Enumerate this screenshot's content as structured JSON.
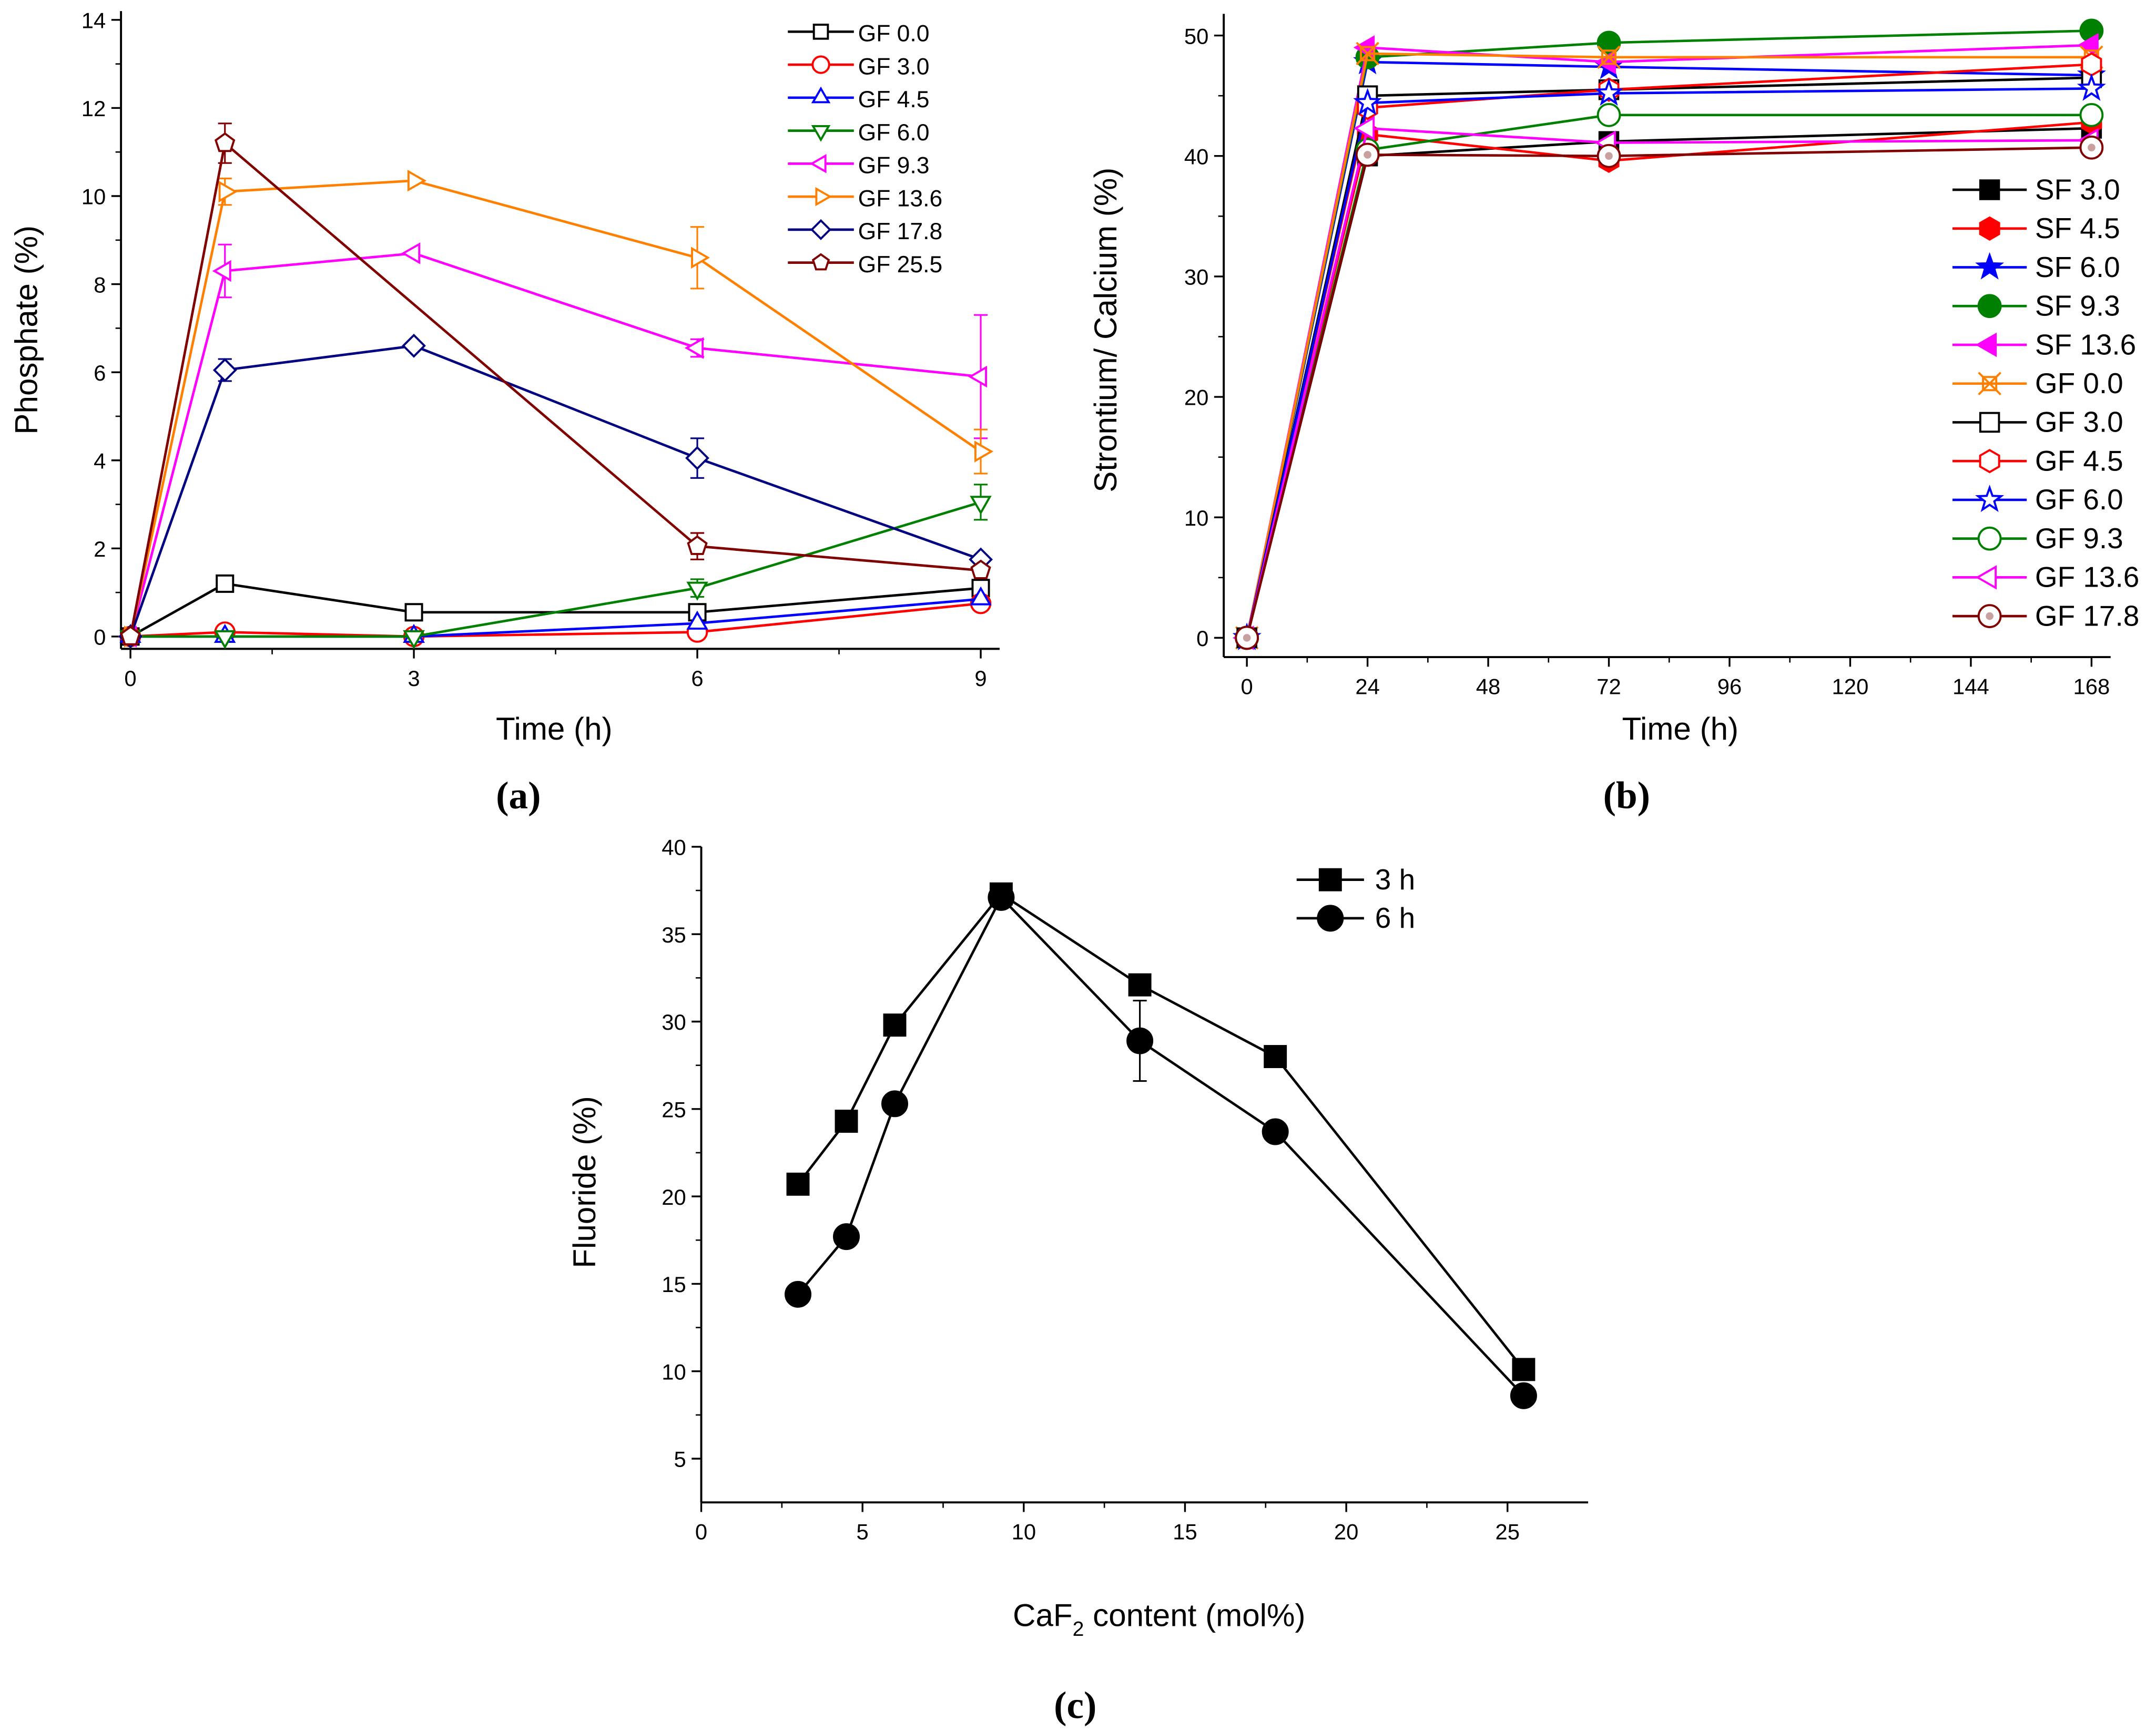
{
  "chart_data": [
    {
      "id": "a",
      "type": "line",
      "panel_label": "(a)",
      "xlabel": "Time (h)",
      "ylabel": "Phosphate (%)",
      "xlim": [
        -0.1,
        9.2
      ],
      "ylim": [
        -0.28,
        14.2
      ],
      "xticks": [
        0,
        3,
        6,
        9
      ],
      "yticks": [
        0,
        2,
        4,
        6,
        8,
        10,
        12,
        14
      ],
      "legend_position": "top-right",
      "series": [
        {
          "name": "GF 0.0",
          "color": "#000000",
          "marker": "square",
          "filled": false,
          "x": [
            0,
            1,
            3,
            6,
            9
          ],
          "y": [
            0,
            1.2,
            0.55,
            0.55,
            1.1
          ]
        },
        {
          "name": "GF 3.0",
          "color": "#ff0000",
          "marker": "circle",
          "filled": false,
          "x": [
            0,
            1,
            3,
            6,
            9
          ],
          "y": [
            0,
            0.1,
            0,
            0.1,
            0.75
          ]
        },
        {
          "name": "GF 4.5",
          "color": "#0000ff",
          "marker": "tri-up",
          "filled": false,
          "x": [
            0,
            1,
            3,
            6,
            9
          ],
          "y": [
            0,
            0,
            0,
            0.3,
            0.85
          ]
        },
        {
          "name": "GF 6.0",
          "color": "#008000",
          "marker": "tri-down",
          "filled": false,
          "x": [
            0,
            1,
            3,
            6,
            9
          ],
          "y": [
            0,
            0,
            0,
            1.1,
            3.05
          ],
          "err": [
            0,
            0,
            0,
            0.2,
            0.4
          ]
        },
        {
          "name": "GF 9.3",
          "color": "#ff00ff",
          "marker": "tri-left",
          "filled": false,
          "x": [
            0,
            1,
            3,
            6,
            9
          ],
          "y": [
            0,
            8.3,
            8.7,
            6.55,
            5.9
          ],
          "err": [
            0,
            0.6,
            0,
            0.2,
            1.4
          ]
        },
        {
          "name": "GF 13.6",
          "color": "#ff8000",
          "marker": "tri-right",
          "filled": false,
          "x": [
            0,
            1,
            3,
            6,
            9
          ],
          "y": [
            0,
            10.1,
            10.35,
            8.6,
            4.2
          ],
          "err": [
            0,
            0.3,
            0,
            0.7,
            0.5
          ]
        },
        {
          "name": "GF 17.8",
          "color": "#000080",
          "marker": "diamond",
          "filled": false,
          "x": [
            0,
            1,
            3,
            6,
            9
          ],
          "y": [
            0,
            6.05,
            6.6,
            4.05,
            1.75
          ],
          "err": [
            0,
            0.25,
            0,
            0.45,
            0
          ]
        },
        {
          "name": "GF 25.5",
          "color": "#800000",
          "marker": "pentagon",
          "filled": false,
          "x": [
            0,
            1,
            6,
            9
          ],
          "y": [
            0,
            11.2,
            2.05,
            1.5
          ],
          "err": [
            0,
            0.45,
            0.3,
            0
          ]
        }
      ]
    },
    {
      "id": "b",
      "type": "line",
      "panel_label": "(b)",
      "xlabel": "Time (h)",
      "ylabel": "Strontium/ Calcium (%)",
      "xlim": [
        -4.6,
        171.8
      ],
      "ylim": [
        -1.6,
        51.8
      ],
      "xticks": [
        0,
        24,
        48,
        72,
        96,
        120,
        144,
        168
      ],
      "yticks": [
        0,
        10,
        20,
        30,
        40,
        50
      ],
      "legend_position": "right",
      "series": [
        {
          "name": "SF 3.0",
          "color": "#000000",
          "marker": "square",
          "filled": true,
          "x": [
            0,
            24,
            72,
            168
          ],
          "y": [
            0,
            40,
            41.2,
            42.3
          ]
        },
        {
          "name": "SF 4.5",
          "color": "#ff0000",
          "marker": "hexagon",
          "filled": true,
          "x": [
            0,
            24,
            72,
            168
          ],
          "y": [
            0,
            41.8,
            39.6,
            42.8
          ]
        },
        {
          "name": "SF 6.0",
          "color": "#0000ff",
          "marker": "star",
          "filled": true,
          "x": [
            0,
            24,
            72,
            168
          ],
          "y": [
            0,
            47.8,
            47.4,
            46.7
          ]
        },
        {
          "name": "SF 9.3",
          "color": "#008000",
          "marker": "circle",
          "filled": true,
          "x": [
            0,
            24,
            72,
            168
          ],
          "y": [
            0,
            48.2,
            49.4,
            50.4
          ]
        },
        {
          "name": "SF 13.6",
          "color": "#ff00ff",
          "marker": "tri-left",
          "filled": true,
          "x": [
            0,
            24,
            72,
            168
          ],
          "y": [
            0,
            49,
            47.8,
            49.2
          ]
        },
        {
          "name": "GF 0.0",
          "color": "#ff8000",
          "marker": "xbox",
          "filled": false,
          "x": [
            0,
            24,
            72,
            168
          ],
          "y": [
            0,
            48.5,
            48.2,
            48.2
          ]
        },
        {
          "name": "GF 3.0",
          "color": "#000000",
          "marker": "square",
          "filled": false,
          "x": [
            0,
            24,
            72,
            168
          ],
          "y": [
            0,
            45,
            45.5,
            46.5
          ]
        },
        {
          "name": "GF 4.5",
          "color": "#ff0000",
          "marker": "hexagon",
          "filled": false,
          "x": [
            0,
            24,
            72,
            168
          ],
          "y": [
            0,
            44,
            45.5,
            47.6
          ]
        },
        {
          "name": "GF 6.0",
          "color": "#0000ff",
          "marker": "star",
          "filled": false,
          "x": [
            0,
            24,
            72,
            168
          ],
          "y": [
            0,
            44.4,
            45.2,
            45.6
          ]
        },
        {
          "name": "GF 9.3",
          "color": "#008000",
          "marker": "circle",
          "filled": false,
          "x": [
            0,
            24,
            72,
            168
          ],
          "y": [
            0,
            40.5,
            43.4,
            43.4
          ]
        },
        {
          "name": "GF 13.6",
          "color": "#ff00ff",
          "marker": "tri-left",
          "filled": false,
          "x": [
            0,
            24,
            72,
            168
          ],
          "y": [
            0,
            42.3,
            41.1,
            41.3
          ]
        },
        {
          "name": "GF 17.8",
          "color": "#800000",
          "marker": "circle-dot",
          "filled": false,
          "x": [
            0,
            24,
            72,
            168
          ],
          "y": [
            0,
            40.1,
            40,
            40.7
          ]
        }
      ]
    },
    {
      "id": "c",
      "type": "line",
      "panel_label": "(c)",
      "xlabel_main": "CaF",
      "xlabel_sub": "2",
      "xlabel_rest": " content (mol%)",
      "ylabel": "Fluoride (%)",
      "xlim": [
        0,
        27.5
      ],
      "ylim": [
        2.5,
        40
      ],
      "xticks": [
        0,
        5,
        10,
        15,
        20,
        25
      ],
      "yticks": [
        5,
        10,
        15,
        20,
        25,
        30,
        35,
        40
      ],
      "legend_position": "top-right",
      "series": [
        {
          "name": "3 h",
          "color": "#000000",
          "marker": "square",
          "filled": true,
          "x": [
            3,
            4.5,
            6,
            9.3,
            13.6,
            17.8,
            25.5
          ],
          "y": [
            20.7,
            24.3,
            29.8,
            37.3,
            32.1,
            28,
            10.1
          ]
        },
        {
          "name": "6 h",
          "color": "#000000",
          "marker": "circle",
          "filled": true,
          "x": [
            3,
            4.5,
            6,
            9.3,
            13.6,
            17.8,
            25.5
          ],
          "y": [
            14.4,
            17.7,
            25.3,
            37.1,
            28.9,
            23.7,
            8.6
          ],
          "err": [
            0,
            0,
            0,
            0,
            2.3,
            0,
            0
          ]
        }
      ]
    }
  ]
}
